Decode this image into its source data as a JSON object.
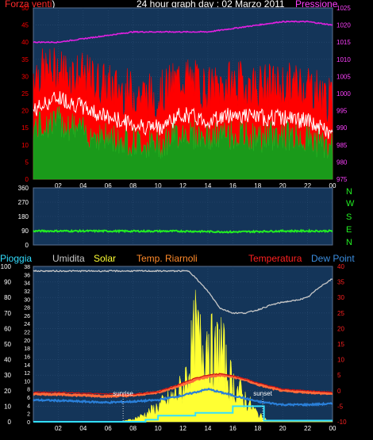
{
  "header": {
    "left_label": "Forza venti",
    "left_suffix": ")",
    "title": "24 hour graph day : 02 Marzo 2011",
    "right_label": "Pressione"
  },
  "legend2": {
    "pioggia": "Pioggia",
    "umidita": "Umidita",
    "solar": "Solar",
    "riarnoli": "Temp. Riarnoli",
    "temperatura": "Temperatura",
    "dewpoint": "Dew Point"
  },
  "compass": [
    "N",
    "W",
    "S",
    "E",
    "N"
  ],
  "annotations": {
    "sunrise": "sunrise",
    "sunset": "sunset"
  },
  "colors": {
    "plot_bg": "#143559",
    "grid": "#2a4c72",
    "gust": "#ff0000",
    "avg_wind": "#1a9a1a",
    "wind_white": "#ffffff",
    "pressure": "#e020e0",
    "direction": "#22ee22",
    "humidity": "#c8c8c8",
    "solar": "#ffff33",
    "riarnoli": "#ff3a2a",
    "temperature": "#ff3a2a",
    "dewpoint": "#2a7fd8",
    "rain": "#33e0ff",
    "left_axis_text": "#ffffff",
    "right_axis_text_top": "#ff40ff",
    "right_axis_text_bottom": "#ff2020"
  },
  "chart_data": [
    {
      "type": "line",
      "title": "24 hour graph day : 02 Marzo 2011",
      "x_ticks": [
        "02",
        "04",
        "06",
        "08",
        "10",
        "12",
        "14",
        "16",
        "18",
        "20",
        "22",
        "00"
      ],
      "y_left": {
        "label": "Forza venti",
        "range": [
          0,
          50
        ],
        "ticks": [
          0,
          5,
          10,
          15,
          20,
          25,
          30,
          35,
          40,
          45,
          50
        ]
      },
      "y_right": {
        "label": "Pressione",
        "range": [
          975,
          1025
        ],
        "ticks": [
          975,
          980,
          985,
          990,
          995,
          1000,
          1005,
          1010,
          1015,
          1020,
          1025
        ]
      },
      "series": [
        {
          "name": "Pressione",
          "axis": "right",
          "x": [
            0,
            2,
            4,
            6,
            8,
            10,
            12,
            14,
            16,
            18,
            20,
            22,
            24
          ],
          "y": [
            1015,
            1015,
            1016,
            1017,
            1018,
            1018,
            1018,
            1018,
            1019,
            1020,
            1021,
            1021,
            1020
          ]
        },
        {
          "axis": "left",
          "x": [
            0,
            2,
            4,
            6,
            8,
            10,
            12,
            14,
            16,
            18,
            20,
            22,
            24
          ],
          "y": [
            31,
            32,
            30,
            27,
            25,
            24,
            30,
            26,
            28,
            27,
            27,
            28,
            22
          ]
        },
        {
          "axis": "left",
          "x": [
            0,
            2,
            4,
            6,
            8,
            10,
            12,
            14,
            16,
            18,
            20,
            22,
            24
          ],
          "y": [
            20,
            24,
            21,
            18,
            16,
            15,
            19,
            17,
            19,
            18,
            18,
            17,
            13
          ]
        },
        {
          "axis": "left",
          "x": [
            0,
            2,
            4,
            6,
            8,
            10,
            12,
            14,
            16,
            18,
            20,
            22,
            24
          ],
          "y": [
            15,
            17,
            14,
            12,
            11,
            10,
            14,
            12,
            13,
            12,
            13,
            12,
            9
          ]
        }
      ]
    },
    {
      "type": "line",
      "y_left": {
        "range": [
          0,
          360
        ],
        "ticks": [
          0,
          90,
          180,
          270,
          360
        ]
      },
      "y_right_labels": [
        "N",
        "W",
        "S",
        "E",
        "N"
      ],
      "series": [
        {
          "axis": "left",
          "x": [
            0,
            4,
            8,
            12,
            16,
            20,
            24
          ],
          "y": [
            88,
            88,
            87,
            87,
            82,
            88,
            88
          ]
        }
      ]
    },
    {
      "type": "line",
      "x_ticks": [
        "02",
        "04",
        "06",
        "08",
        "10",
        "12",
        "14",
        "16",
        "18",
        "20",
        "22",
        "00"
      ],
      "y_left": {
        "range": [
          0,
          100
        ],
        "ticks": [
          0,
          10,
          20,
          30,
          40,
          50,
          60,
          70,
          80,
          90,
          100
        ]
      },
      "y_left_inner": {
        "range": [
          0,
          38
        ],
        "ticks": [
          0,
          2,
          4,
          6,
          8,
          10,
          12,
          14,
          16,
          18,
          20,
          22,
          24,
          26,
          28,
          30,
          32,
          34,
          36,
          38
        ]
      },
      "y_right": {
        "range": [
          -10,
          40
        ],
        "ticks": [
          -10,
          -5,
          0,
          5,
          10,
          15,
          20,
          25,
          30,
          35,
          40
        ]
      },
      "series": [
        {
          "name": "Umidita",
          "axis": "left",
          "x": [
            0,
            4,
            8,
            12.5,
            14,
            15,
            16,
            17,
            18,
            19,
            20,
            21,
            22,
            23,
            24
          ],
          "y": [
            97,
            97,
            97,
            97,
            84,
            73,
            70,
            70,
            72,
            75,
            77,
            78,
            80,
            87,
            92
          ]
        },
        {
          "name": "Solar",
          "axis": "left",
          "x": [
            0,
            7,
            8,
            9,
            10,
            11,
            12,
            12.5,
            13,
            13.5,
            14,
            14.5,
            15,
            15.5,
            16,
            17,
            18,
            19,
            24
          ],
          "y": [
            0,
            0,
            2,
            6,
            12,
            18,
            27,
            45,
            70,
            58,
            72,
            48,
            65,
            40,
            30,
            18,
            6,
            0,
            0
          ]
        },
        {
          "name": "Temp. Riarnoli",
          "axis": "right",
          "x": [
            0,
            2,
            4,
            6,
            8,
            10,
            12,
            13,
            14,
            15,
            16,
            17,
            18,
            19,
            20,
            22,
            24
          ],
          "y": [
            -0.5,
            -0.5,
            -0.8,
            -1,
            -1.2,
            -0.3,
            2.5,
            4,
            5,
            5.5,
            4.8,
            3.8,
            2.5,
            1.5,
            0.5,
            0,
            -0.5
          ]
        },
        {
          "name": "Temperatura",
          "axis": "right",
          "x": [
            0,
            2,
            4,
            6,
            8,
            10,
            12,
            13,
            14,
            15,
            16,
            17,
            18,
            19,
            20,
            22,
            24
          ],
          "y": [
            -1,
            -1.2,
            -1.5,
            -1.8,
            -1.5,
            -0.5,
            2,
            3.5,
            4.5,
            5,
            4.5,
            3.5,
            2,
            1,
            0,
            -0.5,
            -1
          ]
        },
        {
          "name": "Dew Point",
          "axis": "right",
          "x": [
            0,
            2,
            4,
            6,
            8,
            10,
            12,
            14,
            16,
            17,
            18,
            19,
            20,
            22,
            24
          ],
          "y": [
            -3,
            -3.2,
            -3.5,
            -3.8,
            -3.5,
            -3,
            -1.5,
            0.5,
            -1.5,
            -2.5,
            -3.5,
            -4,
            -4.5,
            -4.5,
            -4.2
          ]
        },
        {
          "name": "Pioggia",
          "axis": "left_inner",
          "x": [
            0,
            8,
            9,
            10,
            12.5,
            13,
            16,
            18,
            18.5,
            19,
            24
          ],
          "y": [
            0,
            0,
            0.5,
            1.5,
            1.5,
            2.2,
            3.8,
            3.8,
            0.3,
            0.3,
            0.3
          ]
        }
      ],
      "annotations": [
        {
          "text": "sunrise",
          "x": 7.2
        },
        {
          "text": "sunset",
          "x": 18.4
        }
      ]
    }
  ]
}
